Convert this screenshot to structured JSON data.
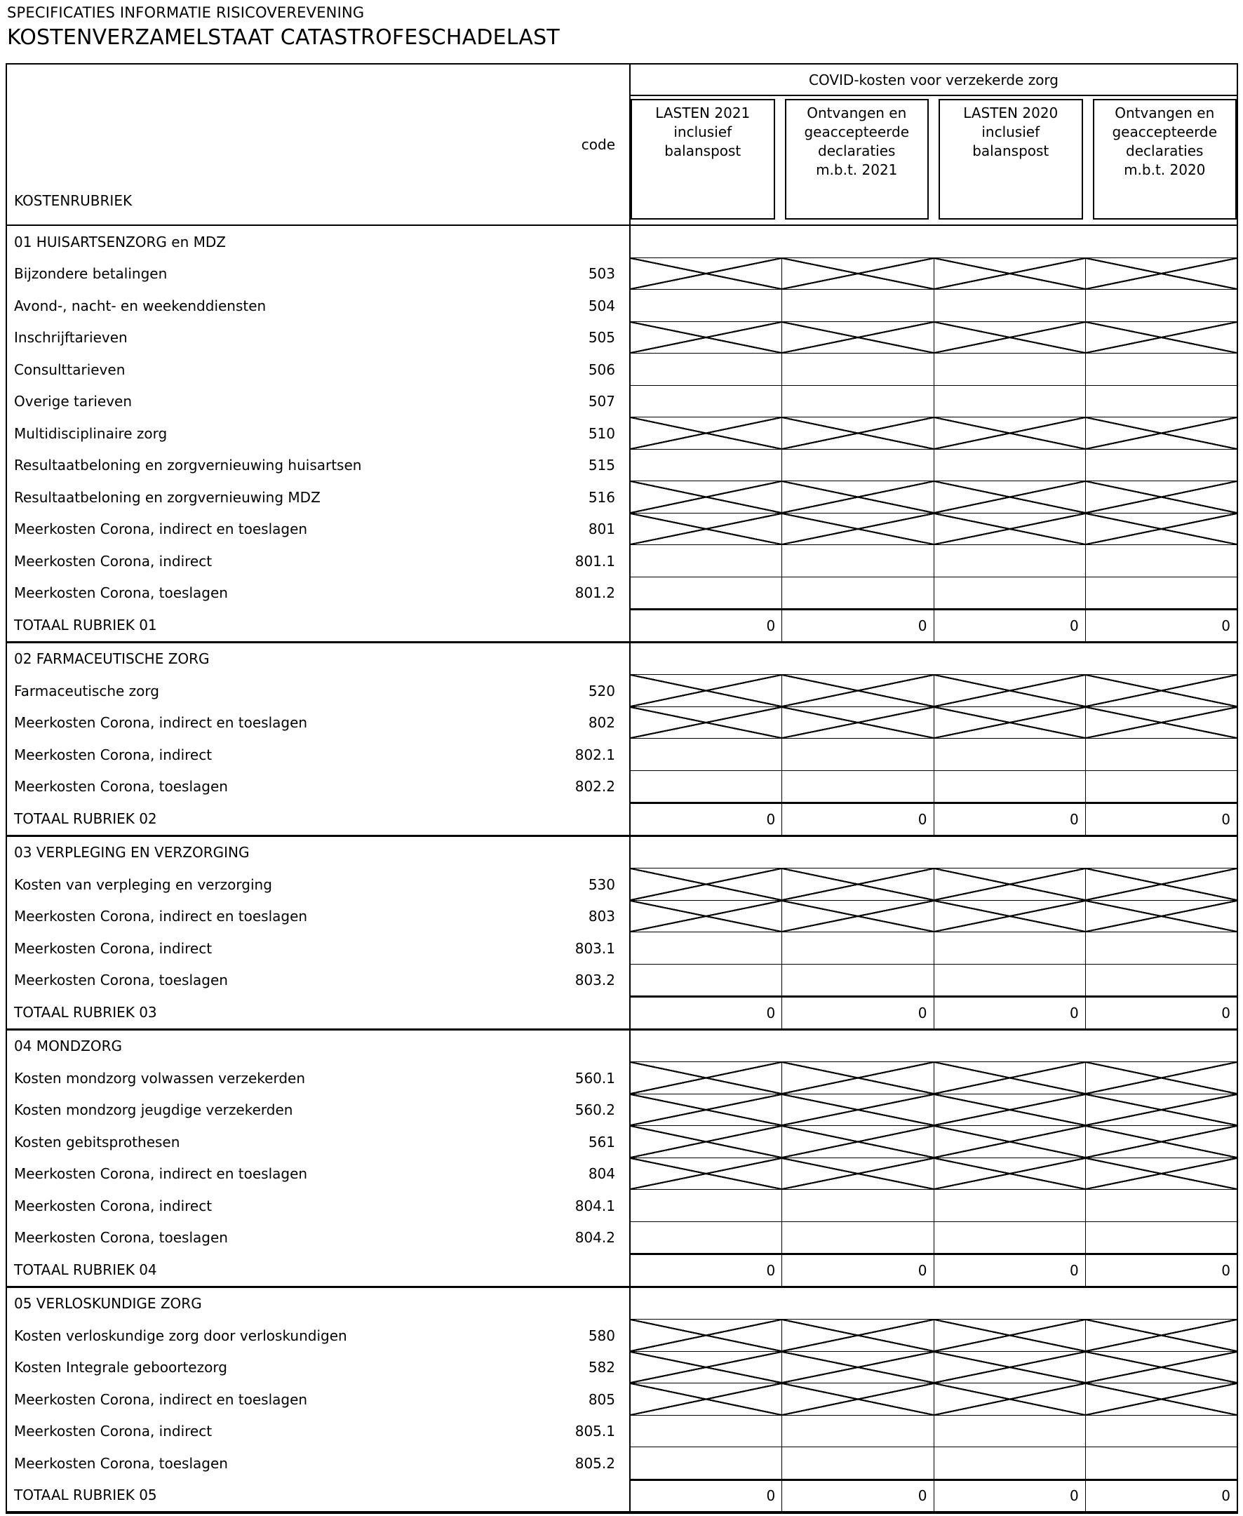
{
  "page": {
    "supertitle": "SPECIFICATIES INFORMATIE RISICOVEREVENING",
    "title": "KOSTENVERZAMELSTAAT CATASTROFESCHADELAST"
  },
  "table": {
    "left_header": {
      "code_label": "code",
      "kostenrubriek_label": "KOSTENRUBRIEK"
    },
    "group_header": "COVID-kosten voor verzekerde zorg",
    "columns": [
      "LASTEN 2021\ninclusief\nbalanspost",
      "Ontvangen en\ngeaccepteerde\ndeclaraties\nm.b.t. 2021",
      "LASTEN 2020\ninclusief\nbalanspost",
      "Ontvangen en\ngeaccepteerde\ndeclaraties\nm.b.t. 2020"
    ],
    "sections": [
      {
        "header": "01  HUISARTSENZORG en MDZ",
        "rows": [
          {
            "label": "Bijzondere betalingen",
            "code": "503",
            "cells": "crossed"
          },
          {
            "label": "Avond-, nacht- en weekenddiensten",
            "code": "504",
            "cells": "empty"
          },
          {
            "label": "Inschrijftarieven",
            "code": "505",
            "cells": "crossed"
          },
          {
            "label": "Consulttarieven",
            "code": "506",
            "cells": "empty"
          },
          {
            "label": "Overige tarieven",
            "code": "507",
            "cells": "empty"
          },
          {
            "label": "Multidisciplinaire zorg",
            "code": "510",
            "cells": "crossed"
          },
          {
            "label": "Resultaatbeloning en zorgvernieuwing huisartsen",
            "code": "515",
            "cells": "empty"
          },
          {
            "label": "Resultaatbeloning en zorgvernieuwing MDZ",
            "code": "516",
            "cells": "crossed"
          },
          {
            "label": "Meerkosten Corona, indirect en toeslagen",
            "code": "801",
            "cells": "crossed"
          },
          {
            "label": "Meerkosten Corona, indirect",
            "code": "801.1",
            "cells": "empty"
          },
          {
            "label": "Meerkosten Corona, toeslagen",
            "code": "801.2",
            "cells": "empty"
          }
        ],
        "total": {
          "label": "TOTAAL RUBRIEK 01",
          "values": [
            "0",
            "0",
            "0",
            "0"
          ]
        }
      },
      {
        "header": "02 FARMACEUTISCHE ZORG",
        "rows": [
          {
            "label": "Farmaceutische zorg",
            "code": "520",
            "cells": "crossed"
          },
          {
            "label": "Meerkosten Corona, indirect en toeslagen",
            "code": "802",
            "cells": "crossed"
          },
          {
            "label": "Meerkosten Corona, indirect",
            "code": "802.1",
            "cells": "empty"
          },
          {
            "label": "Meerkosten Corona, toeslagen",
            "code": "802.2",
            "cells": "empty"
          }
        ],
        "total": {
          "label": "TOTAAL RUBRIEK 02",
          "values": [
            "0",
            "0",
            "0",
            "0"
          ]
        }
      },
      {
        "header": "03 VERPLEGING EN VERZORGING",
        "rows": [
          {
            "label": "Kosten van verpleging en verzorging",
            "code": "530",
            "cells": "crossed"
          },
          {
            "label": "Meerkosten Corona, indirect en toeslagen",
            "code": "803",
            "cells": "crossed"
          },
          {
            "label": "Meerkosten Corona, indirect",
            "code": "803.1",
            "cells": "empty"
          },
          {
            "label": "Meerkosten Corona, toeslagen",
            "code": "803.2",
            "cells": "empty"
          }
        ],
        "total": {
          "label": "TOTAAL RUBRIEK 03",
          "values": [
            "0",
            "0",
            "0",
            "0"
          ]
        }
      },
      {
        "header": "04  MONDZORG",
        "rows": [
          {
            "label": "Kosten mondzorg volwassen verzekerden",
            "code": "560.1",
            "cells": "crossed"
          },
          {
            "label": "Kosten mondzorg jeugdige verzekerden",
            "code": "560.2",
            "cells": "crossed"
          },
          {
            "label": "Kosten gebitsprothesen",
            "code": "561",
            "cells": "crossed"
          },
          {
            "label": "Meerkosten Corona, indirect en toeslagen",
            "code": "804",
            "cells": "crossed"
          },
          {
            "label": "Meerkosten Corona, indirect",
            "code": "804.1",
            "cells": "empty"
          },
          {
            "label": "Meerkosten Corona, toeslagen",
            "code": "804.2",
            "cells": "empty"
          }
        ],
        "total": {
          "label": "TOTAAL RUBRIEK 04",
          "values": [
            "0",
            "0",
            "0",
            "0"
          ]
        }
      },
      {
        "header": "05  VERLOSKUNDIGE ZORG",
        "rows": [
          {
            "label": "Kosten verloskundige zorg door verloskundigen",
            "code": "580",
            "cells": "crossed"
          },
          {
            "label": "Kosten Integrale geboortezorg",
            "code": "582",
            "cells": "crossed"
          },
          {
            "label": "Meerkosten Corona, indirect en toeslagen",
            "code": "805",
            "cells": "crossed"
          },
          {
            "label": "Meerkosten Corona, indirect",
            "code": "805.1",
            "cells": "empty"
          },
          {
            "label": "Meerkosten Corona, toeslagen",
            "code": "805.2",
            "cells": "empty"
          }
        ],
        "total": {
          "label": "TOTAAL RUBRIEK 05",
          "values": [
            "0",
            "0",
            "0",
            "0"
          ]
        }
      }
    ]
  }
}
